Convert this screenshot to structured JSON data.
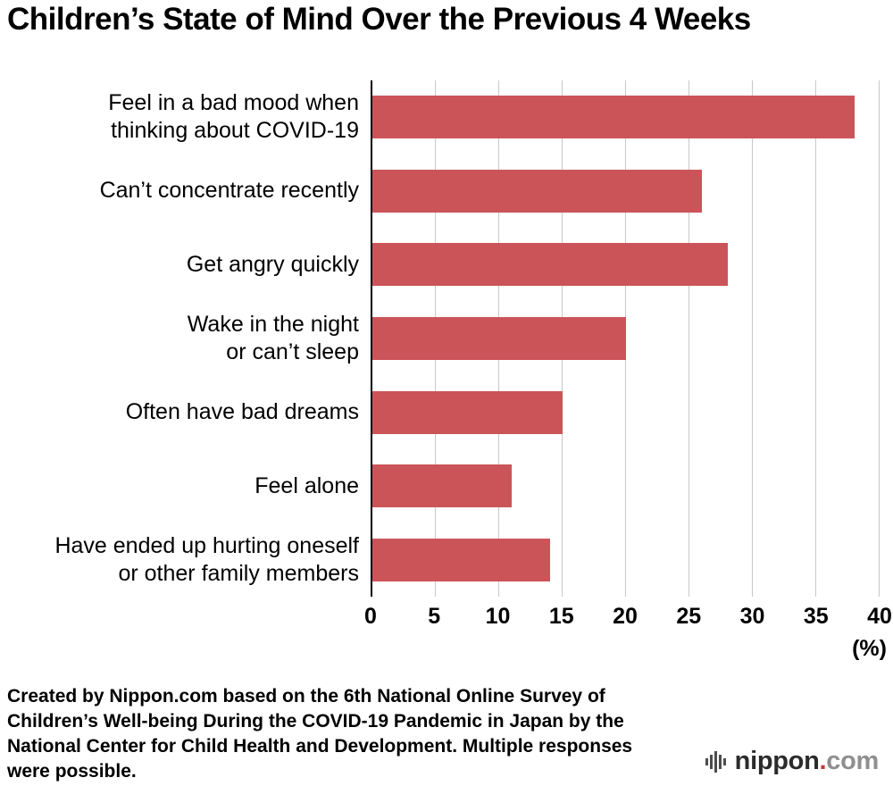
{
  "title": "Children’s State of Mind Over the Previous 4 Weeks",
  "chart_data": {
    "type": "bar",
    "orientation": "horizontal",
    "title": "Children’s State of Mind Over the Previous 4 Weeks",
    "categories": [
      "Feel in a bad mood when\nthinking about COVID-19",
      "Can’t concentrate recently",
      "Get angry quickly",
      "Wake in the night\nor can’t sleep",
      "Often have bad dreams",
      "Feel alone",
      "Have ended up hurting oneself\nor other family members"
    ],
    "values": [
      38,
      26,
      28,
      20,
      15,
      11,
      14
    ],
    "xlim": [
      0,
      40
    ],
    "ticks": [
      0,
      5,
      10,
      15,
      20,
      25,
      30,
      35,
      40
    ],
    "unit_label": "(%)",
    "bar_color": "#cb5459",
    "gridline_color": "#c8c8c8",
    "grid": true,
    "legend": "none"
  },
  "footer": {
    "source": "Created by Nippon.com based on the 6th National Online Survey of Children’s Well-being During the COVID-19 Pandemic in Japan by the National Center for Child Health and Development. Multiple responses were possible."
  },
  "logo": {
    "brand": "nippon",
    "dot": ".",
    "tld": "com"
  }
}
